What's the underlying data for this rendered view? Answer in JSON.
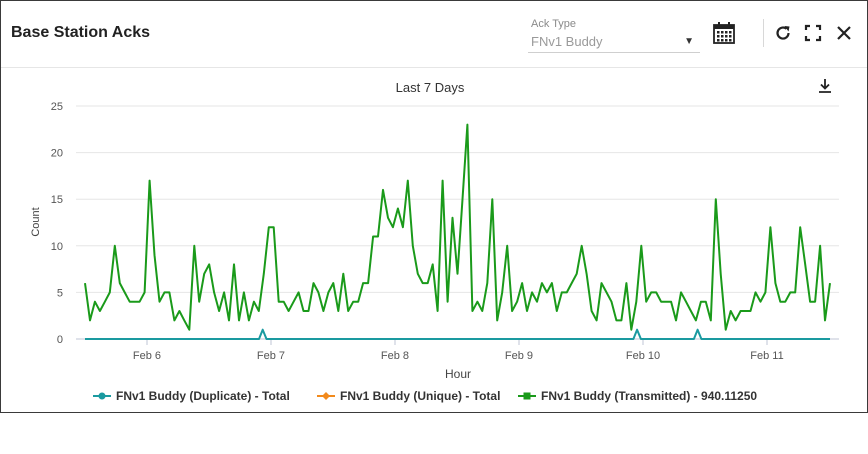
{
  "widget": {
    "title": "Base Station Acks"
  },
  "ack_select": {
    "label": "Ack Type",
    "value": "FNv1 Buddy"
  },
  "icons": {
    "calendar": "calendar-icon",
    "refresh": "refresh-icon",
    "fullscreen": "fullscreen-icon",
    "close": "close-icon",
    "download": "download-icon"
  },
  "chart_data": {
    "type": "line",
    "title": "Last 7 Days",
    "xlabel": "Hour",
    "ylabel": "Count",
    "ylim": [
      0,
      25
    ],
    "yticks": [
      0,
      5,
      10,
      15,
      20,
      25
    ],
    "xticks": [
      "Feb 6",
      "Feb 7",
      "Feb 8",
      "Feb 9",
      "Feb 10",
      "Feb 11"
    ],
    "grid": true,
    "legend": "bottom",
    "series": [
      {
        "name": "FNv1 Buddy (Duplicate) - Total",
        "color": "#1a9aa0",
        "marker": "circle",
        "values": [
          0,
          0,
          0,
          0,
          0,
          0,
          0,
          0,
          0,
          0,
          0,
          0,
          0,
          0,
          0,
          0,
          0,
          0,
          0,
          0,
          0,
          0,
          0,
          0,
          0,
          0,
          0,
          0,
          0,
          0,
          0,
          0,
          0,
          0,
          0,
          0,
          0,
          0,
          0,
          0,
          0,
          0,
          0,
          0,
          0,
          0,
          0,
          1,
          0,
          0,
          0,
          0,
          0,
          0,
          0,
          0,
          0,
          0,
          0,
          0,
          0,
          0,
          0,
          0,
          0,
          0,
          0,
          0,
          0,
          0,
          0,
          0,
          0,
          0,
          0,
          0,
          0,
          0,
          0,
          0,
          0,
          0,
          0,
          0,
          0,
          0,
          0,
          0,
          0,
          0,
          0,
          0,
          0,
          0,
          0,
          0,
          0,
          0,
          0,
          0,
          0,
          0,
          0,
          0,
          0,
          0,
          0,
          0,
          0,
          0,
          0,
          0,
          0,
          0,
          0,
          0,
          0,
          0,
          0,
          0,
          0,
          0,
          0,
          0,
          0,
          0,
          0,
          0,
          0,
          0,
          0,
          0,
          0,
          0,
          0,
          0,
          0,
          0,
          0,
          0,
          0,
          0,
          0,
          0,
          0,
          0,
          1,
          0,
          0,
          0,
          0,
          0,
          0,
          0,
          0,
          0,
          0,
          0,
          0,
          0,
          0,
          0,
          1,
          0,
          0,
          0,
          0,
          0,
          0,
          0,
          0,
          0,
          0,
          0,
          0,
          0,
          0,
          0,
          0,
          0,
          0,
          0,
          0,
          0,
          0,
          0,
          0,
          0,
          0,
          0,
          0,
          0,
          0,
          0,
          0,
          0,
          0,
          0
        ]
      },
      {
        "name": "FNv1 Buddy (Unique) - Total",
        "color": "#f28a1c",
        "marker": "diamond",
        "values": []
      },
      {
        "name": "FNv1 Buddy (Transmitted) - 940.11250",
        "color": "#1a9a1a",
        "marker": "square",
        "values": [
          6,
          2,
          4,
          3,
          4,
          5,
          10,
          6,
          5,
          4,
          4,
          4,
          5,
          17,
          9,
          4,
          5,
          5,
          2,
          3,
          2,
          1,
          10,
          4,
          7,
          8,
          5,
          3,
          5,
          2,
          8,
          2,
          5,
          2,
          4,
          3,
          7,
          12,
          12,
          4,
          4,
          3,
          4,
          5,
          3,
          3,
          6,
          5,
          3,
          5,
          6,
          3,
          7,
          3,
          4,
          4,
          6,
          6,
          11,
          11,
          16,
          13,
          12,
          14,
          12,
          17,
          10,
          7,
          6,
          6,
          8,
          3,
          17,
          4,
          13,
          7,
          15,
          23,
          3,
          4,
          3,
          6,
          15,
          2,
          5,
          10,
          3,
          4,
          6,
          3,
          5,
          4,
          6,
          5,
          6,
          3,
          5,
          5,
          6,
          7,
          10,
          7,
          3,
          2,
          6,
          5,
          4,
          2,
          2,
          6,
          1,
          4,
          10,
          4,
          5,
          5,
          4,
          4,
          4,
          2,
          5,
          4,
          3,
          2,
          4,
          4,
          2,
          15,
          7,
          1,
          3,
          2,
          3,
          3,
          3,
          5,
          4,
          5,
          12,
          6,
          4,
          4,
          5,
          5,
          12,
          8,
          4,
          4,
          10,
          2,
          6
        ]
      }
    ]
  }
}
